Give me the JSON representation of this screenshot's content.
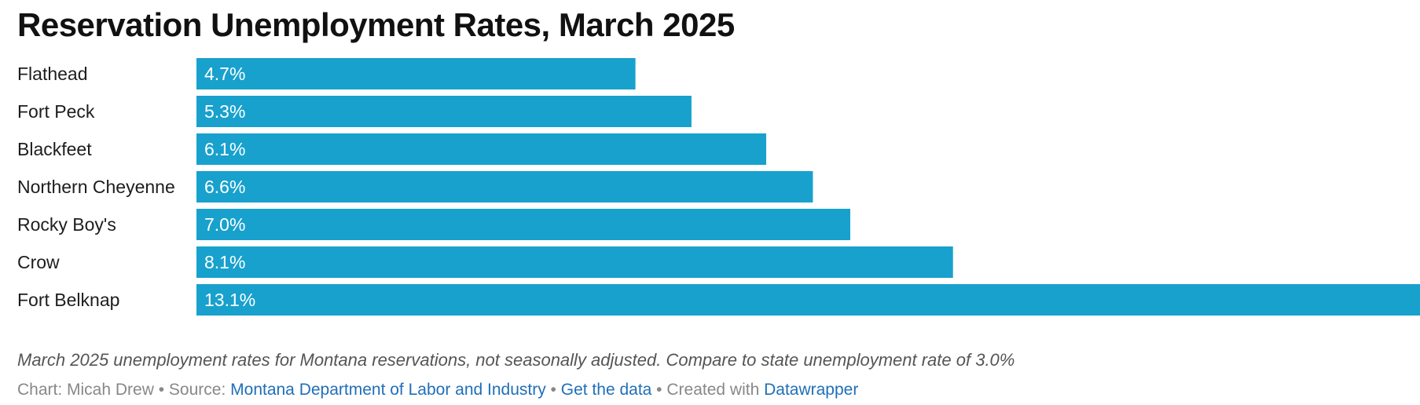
{
  "header": {
    "title": "Reservation Unemployment Rates, March 2025"
  },
  "notes": {
    "description": "March 2025 unemployment rates for Montana reservations, not seasonally adjusted. Compare to state unemployment rate of 3.0%"
  },
  "footer": {
    "chart_prefix": "Chart: Micah Drew",
    "sep1": " • ",
    "source_prefix": "Source: ",
    "source_link": "Montana Department of Labor and Industry",
    "sep2": " • ",
    "data_link": "Get the data",
    "sep3": " • ",
    "created_prefix": "Created with ",
    "created_link": "Datawrapper"
  },
  "colors": {
    "bar": "#18a1cd",
    "bar_label": "#ffffff",
    "category_label": "#1d1d1d",
    "link": "#1f6fb8"
  },
  "chart_data": {
    "type": "bar",
    "orientation": "horizontal",
    "title": "Reservation Unemployment Rates, March 2025",
    "categories": [
      "Flathead",
      "Fort Peck",
      "Blackfeet",
      "Northern Cheyenne",
      "Rocky Boy's",
      "Crow",
      "Fort Belknap"
    ],
    "values": [
      4.7,
      5.3,
      6.1,
      6.6,
      7.0,
      8.1,
      13.1
    ],
    "value_labels": [
      "4.7%",
      "5.3%",
      "6.1%",
      "6.6%",
      "7.0%",
      "8.1%",
      "13.1%"
    ],
    "unit": "%",
    "xlim": [
      0,
      13.1
    ],
    "grid": false,
    "legend": "none"
  }
}
